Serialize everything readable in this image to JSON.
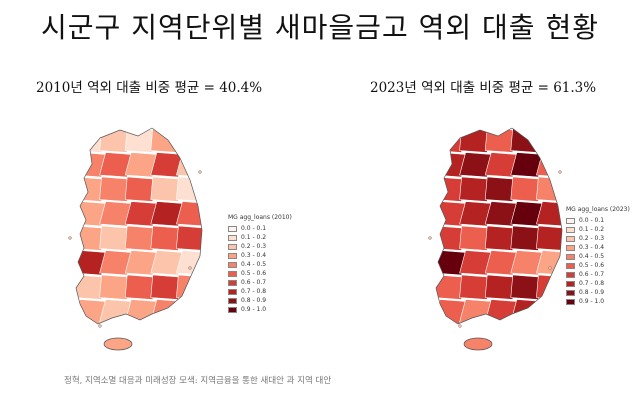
{
  "title": "시군구 지역단위별 새마을금고 역외 대출 현황",
  "maps": [
    {
      "subtitle": "2010년 역외 대출 비중 평균 = 40.4%",
      "legend_title": "MG agg_loans (2010)",
      "mean_share": 0.404,
      "region_shares": [
        0.1,
        0.2,
        0.1,
        0.3,
        0.2,
        0.4,
        0.5,
        0.3,
        0.6,
        0.2,
        0.3,
        0.4,
        0.5,
        0.2,
        0.1,
        0.3,
        0.4,
        0.6,
        0.7,
        0.5,
        0.3,
        0.2,
        0.4,
        0.5,
        0.6,
        0.7,
        0.4,
        0.3,
        0.2,
        0.1,
        0.2,
        0.3,
        0.5,
        0.6,
        0.4,
        0.3,
        0.2,
        0.3,
        0.4,
        0.6
      ]
    },
    {
      "subtitle": "2023년 역외 대출 비중 평균 = 61.3%",
      "legend_title": "MG agg_loans (2023)",
      "mean_share": 0.613,
      "region_shares": [
        0.6,
        0.7,
        0.5,
        0.8,
        0.6,
        0.7,
        0.8,
        0.6,
        0.9,
        0.5,
        0.6,
        0.7,
        0.8,
        0.5,
        0.4,
        0.6,
        0.7,
        0.8,
        0.9,
        0.7,
        0.6,
        0.5,
        0.7,
        0.8,
        0.7,
        0.9,
        0.6,
        0.5,
        0.4,
        0.3,
        0.5,
        0.6,
        0.7,
        0.8,
        0.6,
        0.5,
        0.4,
        0.6,
        0.7,
        0.8
      ]
    }
  ],
  "legend_bins": [
    {
      "label": "0.0 - 0.1",
      "color": "#fff5f0"
    },
    {
      "label": "0.1 - 0.2",
      "color": "#fee0d2"
    },
    {
      "label": "0.2 - 0.3",
      "color": "#fcc5ab"
    },
    {
      "label": "0.3 - 0.4",
      "color": "#fca486"
    },
    {
      "label": "0.4 - 0.5",
      "color": "#f7826a"
    },
    {
      "label": "0.5 - 0.6",
      "color": "#ec5f4f"
    },
    {
      "label": "0.6 - 0.7",
      "color": "#d63d36"
    },
    {
      "label": "0.7 - 0.8",
      "color": "#b52222"
    },
    {
      "label": "0.8 - 0.9",
      "color": "#8c1116"
    },
    {
      "label": "0.9 - 1.0",
      "color": "#67000d"
    }
  ],
  "source": "정혁, 지역소멸 대응과 미래성장 모색: 지역금융을 통한 새대안 과 지역 대안"
}
